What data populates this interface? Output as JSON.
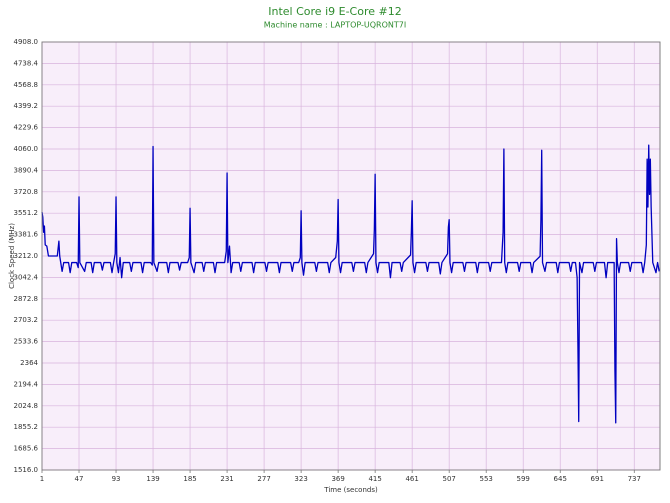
{
  "chart_data": {
    "type": "line",
    "title": "Intel Core i9 E-Core #12",
    "subtitle": "Machine name : LAPTOP-UQRONT7I",
    "x_label": "Time (seconds)",
    "y_label": "Clock Speed (MHz)",
    "color": "#0000c0",
    "grid": true,
    "xlim": [
      1,
      769
    ],
    "xticks": [
      1,
      47,
      93,
      139,
      185,
      231,
      277,
      323,
      369,
      415,
      461,
      507,
      553,
      599,
      645,
      691,
      737
    ],
    "ylim": [
      1516,
      4908
    ],
    "yticks": [
      {
        "value": 1516,
        "label": "1516.0"
      },
      1685.6,
      1855.2,
      2024.8,
      2194.4,
      2364,
      2533.6,
      2703.2,
      2872.8,
      3042.4,
      {
        "value": 3212,
        "label": "3212.0"
      },
      3381.6,
      3551.2,
      3720.8,
      3890.4,
      {
        "value": 4060,
        "label": "4060.0"
      },
      4229.6,
      4399.2,
      4568.8,
      4738.4,
      {
        "value": 4908,
        "label": "4908.0"
      }
    ],
    "x": [
      1,
      2,
      3,
      4,
      5,
      7,
      9,
      20,
      22,
      23,
      26,
      28,
      34,
      36,
      38,
      44,
      46,
      47,
      48,
      54,
      56,
      62,
      64,
      66,
      74,
      76,
      78,
      86,
      88,
      90,
      92,
      93,
      94,
      96,
      98,
      100,
      102,
      110,
      112,
      114,
      124,
      126,
      128,
      136,
      138,
      139,
      140,
      144,
      146,
      156,
      158,
      160,
      170,
      172,
      174,
      182,
      184,
      185,
      186,
      190,
      192,
      200,
      202,
      204,
      214,
      216,
      218,
      228,
      230,
      231,
      232,
      234,
      236,
      238,
      246,
      248,
      250,
      262,
      264,
      266,
      278,
      280,
      282,
      294,
      296,
      298,
      310,
      312,
      314,
      320,
      322,
      323,
      324,
      326,
      328,
      340,
      342,
      344,
      356,
      358,
      360,
      366,
      368,
      369,
      370,
      372,
      374,
      386,
      388,
      390,
      402,
      404,
      406,
      413,
      414,
      415,
      416,
      418,
      420,
      432,
      434,
      436,
      446,
      448,
      450,
      459,
      460,
      461,
      462,
      464,
      466,
      478,
      480,
      482,
      494,
      496,
      498,
      505,
      506,
      507,
      508,
      510,
      512,
      524,
      526,
      528,
      540,
      542,
      544,
      556,
      558,
      560,
      572,
      574,
      575,
      576,
      578,
      580,
      592,
      594,
      596,
      608,
      610,
      612,
      620,
      621,
      622,
      623,
      626,
      628,
      640,
      642,
      644,
      656,
      658,
      660,
      664,
      666,
      667,
      668,
      669,
      672,
      674,
      686,
      688,
      690,
      700,
      702,
      704,
      712,
      713,
      714,
      715,
      716,
      718,
      720,
      730,
      732,
      734,
      746,
      748,
      750,
      752,
      753,
      754,
      755,
      756,
      757,
      758,
      760,
      764,
      766,
      768
    ],
    "values": [
      3560,
      3520,
      3400,
      3450,
      3300,
      3290,
      3212,
      3212,
      3330,
      3212,
      3090,
      3160,
      3160,
      3080,
      3160,
      3160,
      3120,
      3680,
      3160,
      3090,
      3160,
      3160,
      3080,
      3160,
      3160,
      3100,
      3160,
      3160,
      3080,
      3160,
      3230,
      3680,
      3160,
      3080,
      3200,
      3040,
      3160,
      3160,
      3090,
      3160,
      3160,
      3080,
      3160,
      3160,
      3140,
      4080,
      3160,
      3090,
      3160,
      3160,
      3080,
      3160,
      3160,
      3100,
      3160,
      3160,
      3200,
      3590,
      3160,
      3080,
      3160,
      3160,
      3090,
      3160,
      3160,
      3080,
      3160,
      3160,
      3250,
      3870,
      3160,
      3290,
      3080,
      3160,
      3160,
      3090,
      3160,
      3160,
      3080,
      3160,
      3160,
      3090,
      3160,
      3160,
      3080,
      3160,
      3160,
      3090,
      3160,
      3160,
      3200,
      3570,
      3160,
      3060,
      3160,
      3160,
      3090,
      3160,
      3160,
      3080,
      3160,
      3200,
      3330,
      3660,
      3160,
      3080,
      3160,
      3160,
      3090,
      3160,
      3160,
      3080,
      3160,
      3230,
      3420,
      3860,
      3160,
      3080,
      3160,
      3160,
      3040,
      3160,
      3160,
      3090,
      3160,
      3220,
      3400,
      3650,
      3160,
      3080,
      3160,
      3160,
      3090,
      3160,
      3160,
      3070,
      3160,
      3230,
      3440,
      3500,
      3160,
      3080,
      3160,
      3160,
      3090,
      3160,
      3160,
      3080,
      3160,
      3160,
      3090,
      3160,
      3160,
      3400,
      4060,
      3160,
      3080,
      3160,
      3160,
      3090,
      3160,
      3160,
      3080,
      3160,
      3210,
      3500,
      4050,
      3160,
      3090,
      3160,
      3160,
      3080,
      3160,
      3160,
      3090,
      3160,
      3160,
      3040,
      2500,
      1900,
      3160,
      3080,
      3160,
      3160,
      3090,
      3160,
      3160,
      3040,
      3160,
      3160,
      2300,
      1890,
      3350,
      3160,
      3080,
      3160,
      3160,
      3090,
      3160,
      3160,
      3080,
      3160,
      3300,
      3980,
      3600,
      4090,
      3700,
      3980,
      3600,
      3160,
      3080,
      3160,
      3090
    ]
  }
}
